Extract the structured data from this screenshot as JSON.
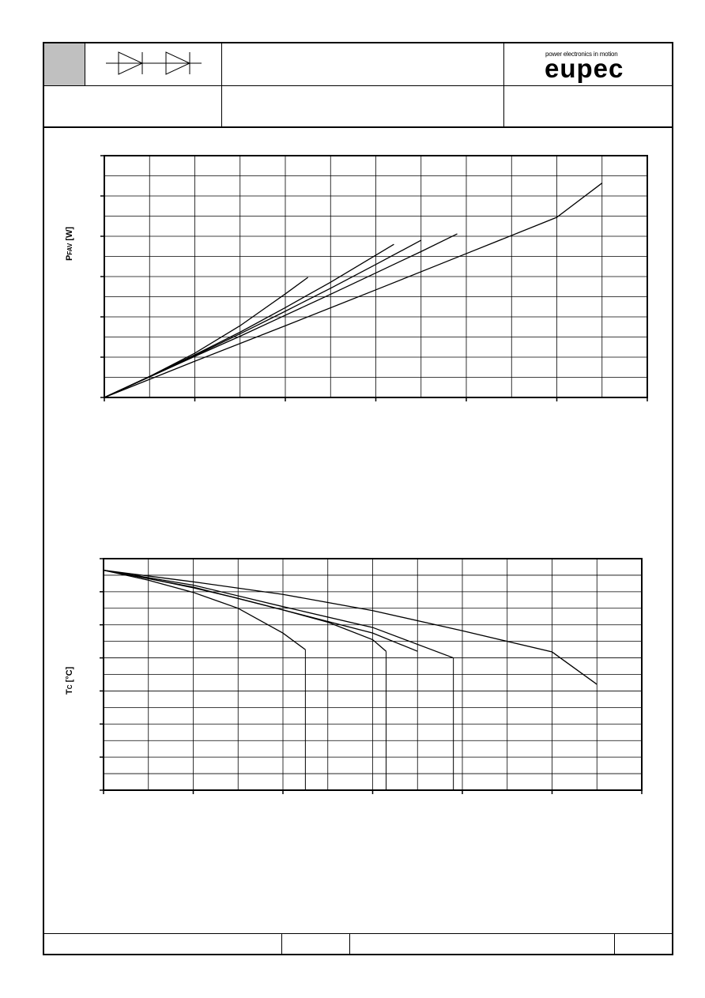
{
  "header": {
    "logo_tagline": "power electronics in motion",
    "logo_text": "eupec",
    "symbol_icon": "double-diode-icon"
  },
  "chart_data": [
    {
      "type": "line",
      "ylabel_main": "P",
      "ylabel_sub": "FAV",
      "ylabel_unit": " [W]",
      "xlim": [
        0,
        6
      ],
      "ylim": [
        0,
        6
      ],
      "series": [
        {
          "x": [
            0,
            0.5,
            1.0,
            1.5,
            2.0,
            2.25
          ],
          "y": [
            0,
            0.52,
            1.1,
            1.78,
            2.57,
            2.98
          ]
        },
        {
          "x": [
            0,
            0.5,
            1.0,
            1.5,
            2.0,
            2.5,
            3.0,
            3.2
          ],
          "y": [
            0,
            0.52,
            1.06,
            1.62,
            2.23,
            2.86,
            3.53,
            3.8
          ]
        },
        {
          "x": [
            0,
            0.5,
            1.0,
            1.5,
            2.0,
            2.5,
            3.0,
            3.5
          ],
          "y": [
            0,
            0.52,
            1.04,
            1.58,
            2.14,
            2.71,
            3.3,
            3.9
          ]
        },
        {
          "x": [
            0,
            0.5,
            1.0,
            1.5,
            2.0,
            2.5,
            3.0,
            3.5,
            3.9
          ],
          "y": [
            0,
            0.51,
            1.02,
            1.52,
            2.04,
            2.56,
            3.09,
            3.62,
            4.06
          ]
        },
        {
          "x": [
            0,
            1.0,
            2.0,
            3.0,
            4.0,
            5.0,
            5.5
          ],
          "y": [
            0,
            0.9,
            1.78,
            2.67,
            3.57,
            4.47,
            5.32
          ]
        }
      ]
    },
    {
      "type": "line",
      "ylabel_main": "T",
      "ylabel_sub": "C",
      "ylabel_unit": " [°C]",
      "xlim": [
        0,
        6
      ],
      "ylim": [
        0,
        7
      ],
      "series": [
        {
          "x": [
            0,
            0.5,
            1.0,
            1.5,
            2.0,
            2.25
          ],
          "y": [
            6.65,
            6.35,
            5.98,
            5.5,
            4.75,
            4.25
          ]
        },
        {
          "x": [
            0,
            0.5,
            1.0,
            1.5,
            2.0,
            2.5,
            3.0,
            3.15
          ],
          "y": [
            6.65,
            6.4,
            6.12,
            5.8,
            5.45,
            5.08,
            4.55,
            4.2
          ]
        },
        {
          "x": [
            0,
            1.0,
            2.0,
            3.0,
            3.5
          ],
          "y": [
            6.65,
            6.14,
            5.45,
            4.75,
            4.2
          ]
        },
        {
          "x": [
            0,
            1.0,
            2.0,
            3.0,
            3.9
          ],
          "y": [
            6.65,
            6.2,
            5.55,
            4.92,
            4.0
          ]
        },
        {
          "x": [
            0,
            1.0,
            2.0,
            3.0,
            4.0,
            5.0,
            5.5
          ],
          "y": [
            6.65,
            6.3,
            5.92,
            5.43,
            4.82,
            4.18,
            3.2
          ]
        }
      ],
      "drop_lines": [
        2.25,
        3.15,
        3.9
      ]
    }
  ]
}
